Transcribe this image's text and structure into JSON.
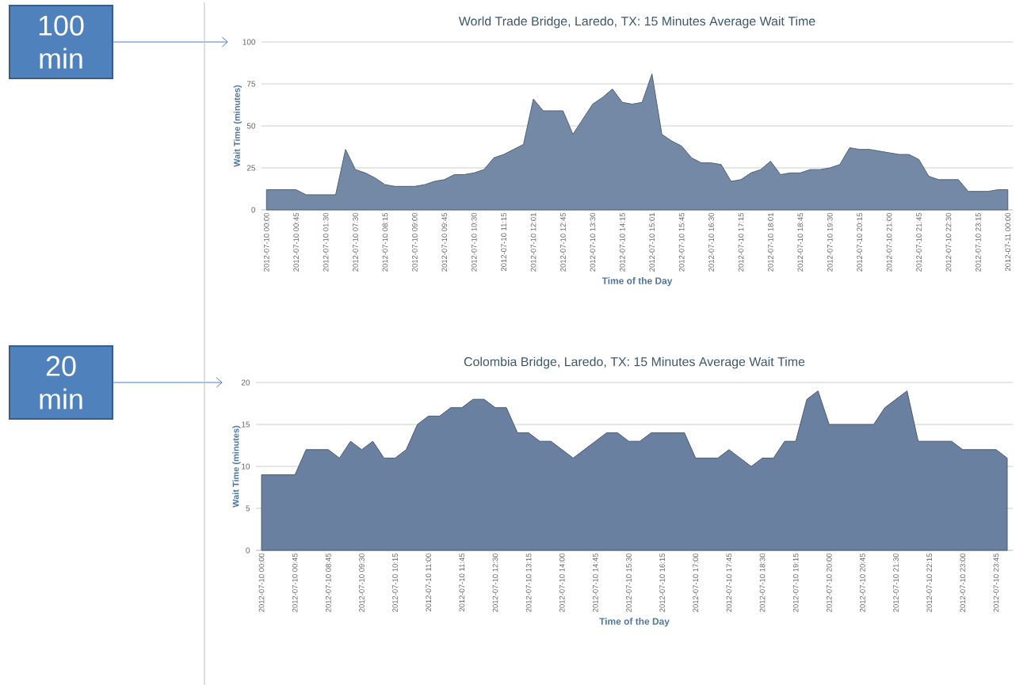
{
  "chart_data": [
    {
      "type": "area",
      "title": "World Trade Bridge, Laredo, TX: 15 Minutes Average Wait Time",
      "xlabel": "Time of the Day",
      "ylabel": "Wait Time (minutes)",
      "categories": [
        "2012-07-10 00:00",
        null,
        null,
        "2012-07-10 00:45",
        null,
        null,
        "2012-07-10 01:30",
        null,
        null,
        "2012-07-10 07:30",
        null,
        null,
        "2012-07-10 08:15",
        null,
        null,
        "2012-07-10 09:00",
        null,
        null,
        "2012-07-10 09:45",
        null,
        null,
        "2012-07-10 10:30",
        null,
        null,
        "2012-07-10 11:15",
        null,
        null,
        "2012-07-10 12:01",
        null,
        null,
        "2012-07-10 12:45",
        null,
        null,
        "2012-07-10 13:30",
        null,
        null,
        "2012-07-10 14:15",
        null,
        null,
        "2012-07-10 15:01",
        null,
        null,
        "2012-07-10 15:45",
        null,
        null,
        "2012-07-10 16:30",
        null,
        null,
        "2012-07-10 17:15",
        null,
        null,
        "2012-07-10 18:01",
        null,
        null,
        "2012-07-10 18:45",
        null,
        null,
        "2012-07-10 19:30",
        null,
        null,
        "2012-07-10 20:15",
        null,
        null,
        "2012-07-10 21:00",
        null,
        null,
        "2012-07-10 21:45",
        null,
        null,
        "2012-07-10 22:30",
        null,
        null,
        "2012-07-10 23:15",
        null,
        null,
        "2012-07-11 00:00"
      ],
      "values": [
        12,
        12,
        12,
        12,
        9,
        9,
        9,
        9,
        36,
        24,
        22,
        19,
        15,
        14,
        14,
        14,
        15,
        17,
        18,
        21,
        21,
        22,
        24,
        31,
        33,
        36,
        39,
        66,
        59,
        59,
        59,
        45,
        54,
        63,
        67,
        72,
        64,
        63,
        64,
        81,
        45,
        41,
        38,
        31,
        28,
        28,
        27,
        17,
        18,
        22,
        24,
        29,
        21,
        22,
        22,
        24,
        24,
        25,
        27,
        37,
        36,
        36,
        35,
        34,
        33,
        33,
        30,
        20,
        18,
        18,
        18,
        11,
        11,
        11,
        12,
        12
      ],
      "color": "#7489a6",
      "ylim": [
        0,
        100
      ],
      "yticks": [
        0,
        25,
        50,
        75,
        100
      ],
      "grid": "y",
      "annotations": [
        "100 min"
      ]
    },
    {
      "type": "area",
      "title": "Colombia Bridge, Laredo, TX: 15 Minutes Average Wait Time",
      "xlabel": "Time of the Day",
      "ylabel": "Wait Time (minutes)",
      "categories": [
        "2012-07-10 00:00",
        null,
        null,
        "2012-07-10 00:45",
        null,
        null,
        "2012-07-10 08:45",
        null,
        null,
        "2012-07-10 09:30",
        null,
        null,
        "2012-07-10 10:15",
        null,
        null,
        "2012-07-10 11:00",
        null,
        null,
        "2012-07-10 11:45",
        null,
        null,
        "2012-07-10 12:30",
        null,
        null,
        "2012-07-10 13:15",
        null,
        null,
        "2012-07-10 14:00",
        null,
        null,
        "2012-07-10 14:45",
        null,
        null,
        "2012-07-10 15:30",
        null,
        null,
        "2012-07-10 16:15",
        null,
        null,
        "2012-07-10 17:00",
        null,
        null,
        "2012-07-10 17:45",
        null,
        null,
        "2012-07-10 18:30",
        null,
        null,
        "2012-07-10 19:15",
        null,
        null,
        "2012-07-10 20:00",
        null,
        null,
        "2012-07-10 20:45",
        null,
        null,
        "2012-07-10 21:30",
        null,
        null,
        "2012-07-10 22:15",
        null,
        null,
        "2012-07-10 23:00",
        null,
        null,
        "2012-07-10 23:45",
        null
      ],
      "values": [
        9,
        9,
        9,
        9,
        12,
        12,
        12,
        11,
        13,
        12,
        13,
        11,
        11,
        12,
        15,
        16,
        16,
        17,
        17,
        18,
        18,
        17,
        17,
        14,
        14,
        13,
        13,
        12,
        11,
        12,
        13,
        14,
        14,
        13,
        13,
        14,
        14,
        14,
        14,
        11,
        11,
        11,
        12,
        11,
        10,
        11,
        11,
        13,
        13,
        18,
        19,
        15,
        15,
        15,
        15,
        15,
        17,
        18,
        19,
        13,
        13,
        13,
        13,
        12,
        12,
        12,
        12,
        11
      ],
      "color": "#6a80a0",
      "ylim": [
        0,
        20
      ],
      "yticks": [
        0,
        5,
        10,
        15,
        20
      ],
      "grid": "y",
      "annotations": [
        "20 min"
      ]
    }
  ]
}
